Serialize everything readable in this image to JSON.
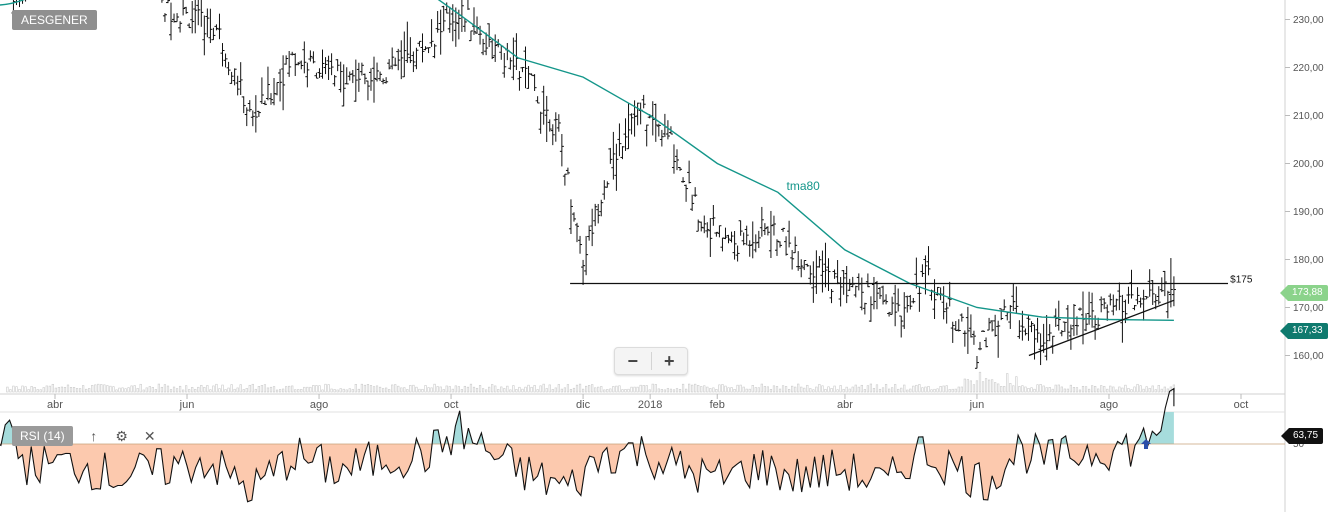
{
  "symbol": "AESGENER",
  "price_axis": {
    "ticks": [
      "230,00",
      "220,00",
      "210,00",
      "200,00",
      "190,00",
      "180,00",
      "170,00",
      "160,00"
    ]
  },
  "time_axis": {
    "labels": [
      "abr",
      "jun",
      "ago",
      "oct",
      "dic",
      "2018",
      "feb",
      "abr",
      "jun",
      "ago",
      "oct"
    ]
  },
  "indicator": {
    "ma_label": "tma80",
    "line_label": "$175"
  },
  "tags": {
    "last_price": "173,88",
    "ma_value": "167,33",
    "rsi_value": "63,75"
  },
  "rsi": {
    "label": "RSI (14)",
    "scale_label": "50"
  },
  "zoom": {
    "minus": "−",
    "plus": "+"
  },
  "icons": {
    "up": "up-arrow-icon",
    "settings": "gear-icon",
    "close": "close-icon"
  },
  "colors": {
    "ma": "#14968a",
    "rsi_fill_below": "#fcc9ae",
    "rsi_fill_above": "#a6dcdc",
    "bars": "#111111"
  },
  "chart_data": {
    "type": "ohlc",
    "symbol": "AESGENER",
    "y_range": [
      156,
      234
    ],
    "resistance_level": 175,
    "close_series": [
      {
        "x": "2017-03-10",
        "y": 236
      },
      {
        "x": "2017-05-25",
        "y": 232
      },
      {
        "x": "2017-06-15",
        "y": 228
      },
      {
        "x": "2017-07-01",
        "y": 209
      },
      {
        "x": "2017-07-20",
        "y": 222
      },
      {
        "x": "2017-08-10",
        "y": 218
      },
      {
        "x": "2017-09-01",
        "y": 219
      },
      {
        "x": "2017-09-20",
        "y": 225
      },
      {
        "x": "2017-10-05",
        "y": 232
      },
      {
        "x": "2017-10-20",
        "y": 224
      },
      {
        "x": "2017-11-05",
        "y": 218
      },
      {
        "x": "2017-11-20",
        "y": 206
      },
      {
        "x": "2017-12-01",
        "y": 180
      },
      {
        "x": "2017-12-10",
        "y": 195
      },
      {
        "x": "2017-12-25",
        "y": 212
      },
      {
        "x": "2018-01-10",
        "y": 205
      },
      {
        "x": "2018-01-25",
        "y": 188
      },
      {
        "x": "2018-02-10",
        "y": 183
      },
      {
        "x": "2018-02-25",
        "y": 187
      },
      {
        "x": "2018-03-10",
        "y": 181
      },
      {
        "x": "2018-03-25",
        "y": 176
      },
      {
        "x": "2018-04-10",
        "y": 173
      },
      {
        "x": "2018-04-25",
        "y": 168
      },
      {
        "x": "2018-05-08",
        "y": 177
      },
      {
        "x": "2018-05-20",
        "y": 169
      },
      {
        "x": "2018-06-01",
        "y": 161
      },
      {
        "x": "2018-06-15",
        "y": 170
      },
      {
        "x": "2018-07-01",
        "y": 163
      },
      {
        "x": "2018-07-15",
        "y": 168
      },
      {
        "x": "2018-07-30",
        "y": 169
      },
      {
        "x": "2018-08-15",
        "y": 171
      },
      {
        "x": "2018-08-31",
        "y": 173.88
      }
    ],
    "tma80": [
      {
        "x": "2017-09-10",
        "y": 239
      },
      {
        "x": "2017-10-05",
        "y": 231
      },
      {
        "x": "2017-11-01",
        "y": 222
      },
      {
        "x": "2017-12-01",
        "y": 218
      },
      {
        "x": "2018-01-01",
        "y": 210
      },
      {
        "x": "2018-02-01",
        "y": 200
      },
      {
        "x": "2018-03-01",
        "y": 194
      },
      {
        "x": "2018-04-01",
        "y": 182
      },
      {
        "x": "2018-05-01",
        "y": 175
      },
      {
        "x": "2018-06-01",
        "y": 170
      },
      {
        "x": "2018-07-01",
        "y": 168
      },
      {
        "x": "2018-08-01",
        "y": 167.5
      },
      {
        "x": "2018-08-31",
        "y": 167.33
      }
    ],
    "trendline": [
      {
        "x": "2018-06-25",
        "y": 160
      },
      {
        "x": "2018-08-31",
        "y": 171.5
      }
    ],
    "rsi14": [
      {
        "x": "2017-03-01",
        "y": 62
      },
      {
        "x": "2017-03-20",
        "y": 42
      },
      {
        "x": "2017-04-10",
        "y": 43
      },
      {
        "x": "2017-05-01",
        "y": 38
      },
      {
        "x": "2017-05-20",
        "y": 41
      },
      {
        "x": "2017-06-10",
        "y": 44
      },
      {
        "x": "2017-07-01",
        "y": 33
      },
      {
        "x": "2017-07-20",
        "y": 46
      },
      {
        "x": "2017-08-10",
        "y": 40
      },
      {
        "x": "2017-09-01",
        "y": 45
      },
      {
        "x": "2017-09-20",
        "y": 46
      },
      {
        "x": "2017-10-05",
        "y": 55
      },
      {
        "x": "2017-10-20",
        "y": 46
      },
      {
        "x": "2017-11-05",
        "y": 39
      },
      {
        "x": "2017-11-25",
        "y": 34
      },
      {
        "x": "2017-12-10",
        "y": 46
      },
      {
        "x": "2017-12-25",
        "y": 48
      },
      {
        "x": "2018-01-15",
        "y": 41
      },
      {
        "x": "2018-02-01",
        "y": 37
      },
      {
        "x": "2018-02-20",
        "y": 42
      },
      {
        "x": "2018-03-10",
        "y": 38
      },
      {
        "x": "2018-03-30",
        "y": 41
      },
      {
        "x": "2018-04-20",
        "y": 35
      },
      {
        "x": "2018-05-05",
        "y": 48
      },
      {
        "x": "2018-05-20",
        "y": 42
      },
      {
        "x": "2018-06-05",
        "y": 36
      },
      {
        "x": "2018-06-20",
        "y": 48
      },
      {
        "x": "2018-07-05",
        "y": 44
      },
      {
        "x": "2018-07-25",
        "y": 48
      },
      {
        "x": "2018-08-15",
        "y": 49
      },
      {
        "x": "2018-08-31",
        "y": 63.75
      }
    ],
    "rsi_level": 50
  }
}
